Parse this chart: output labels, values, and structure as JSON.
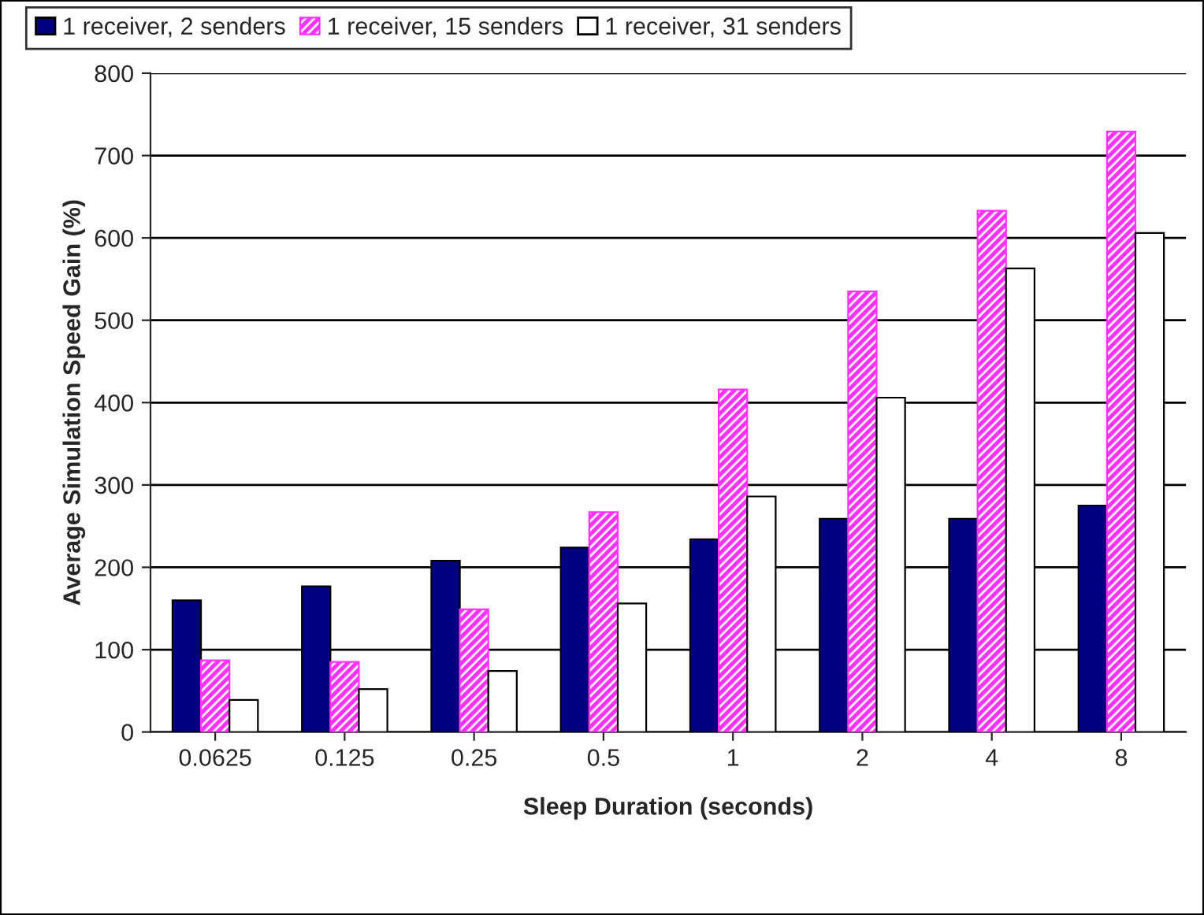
{
  "chart_data": {
    "type": "bar",
    "xlabel": "Sleep Duration (seconds)",
    "ylabel": "Average Simulation Speed Gain (%)",
    "categories": [
      "0.0625",
      "0.125",
      "0.25",
      "0.5",
      "1",
      "2",
      "4",
      "8"
    ],
    "series": [
      {
        "name": "1 receiver, 2 senders",
        "color": "#000080",
        "values": [
          160,
          177,
          208,
          224,
          234,
          259,
          259,
          275
        ]
      },
      {
        "name": "1 receiver, 15 senders",
        "color": "#ff33ff",
        "values": [
          87,
          85,
          149,
          267,
          416,
          535,
          633,
          729
        ]
      },
      {
        "name": "1 receiver, 31 senders",
        "color": "#ffffff",
        "values": [
          39,
          52,
          74,
          156,
          286,
          406,
          563,
          606
        ]
      }
    ],
    "ylim": [
      0,
      800
    ],
    "yticks": [
      0,
      100,
      200,
      300,
      400,
      500,
      600,
      700,
      800
    ],
    "grid": "y",
    "legend": "top"
  }
}
